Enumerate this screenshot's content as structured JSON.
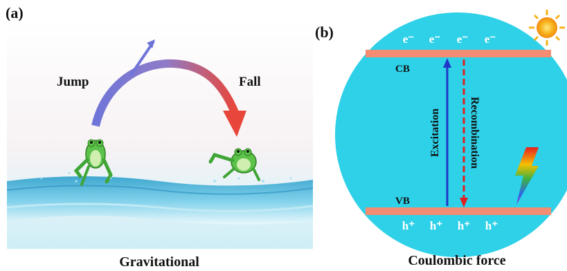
{
  "panel_a": {
    "label": "(a)",
    "jump_label": "Jump",
    "fall_label": "Fall",
    "caption": "Gravitational"
  },
  "panel_b": {
    "label": "(b)",
    "cb_label": "CB",
    "vb_label": "VB",
    "excitation_label": "Excitation",
    "recombination_label": "Recombination",
    "electrons": [
      "e⁻",
      "e⁻",
      "e⁻",
      "e⁻"
    ],
    "holes": [
      "h⁺",
      "h⁺",
      "h⁺",
      "h⁺"
    ],
    "caption": "Coulombic force"
  },
  "colors": {
    "circle": "#2ED1E8",
    "band": "#F28C73",
    "jump_arrow": "#6F75D8",
    "fall_arrow": "#E8463A",
    "excitation_arrow": "#2037C8",
    "recombination_arrow": "#E02020",
    "sun": "#F7B21A"
  },
  "icons": {
    "frog": "frog-icon",
    "sun": "sun-icon",
    "lightning": "lightning-icon"
  }
}
